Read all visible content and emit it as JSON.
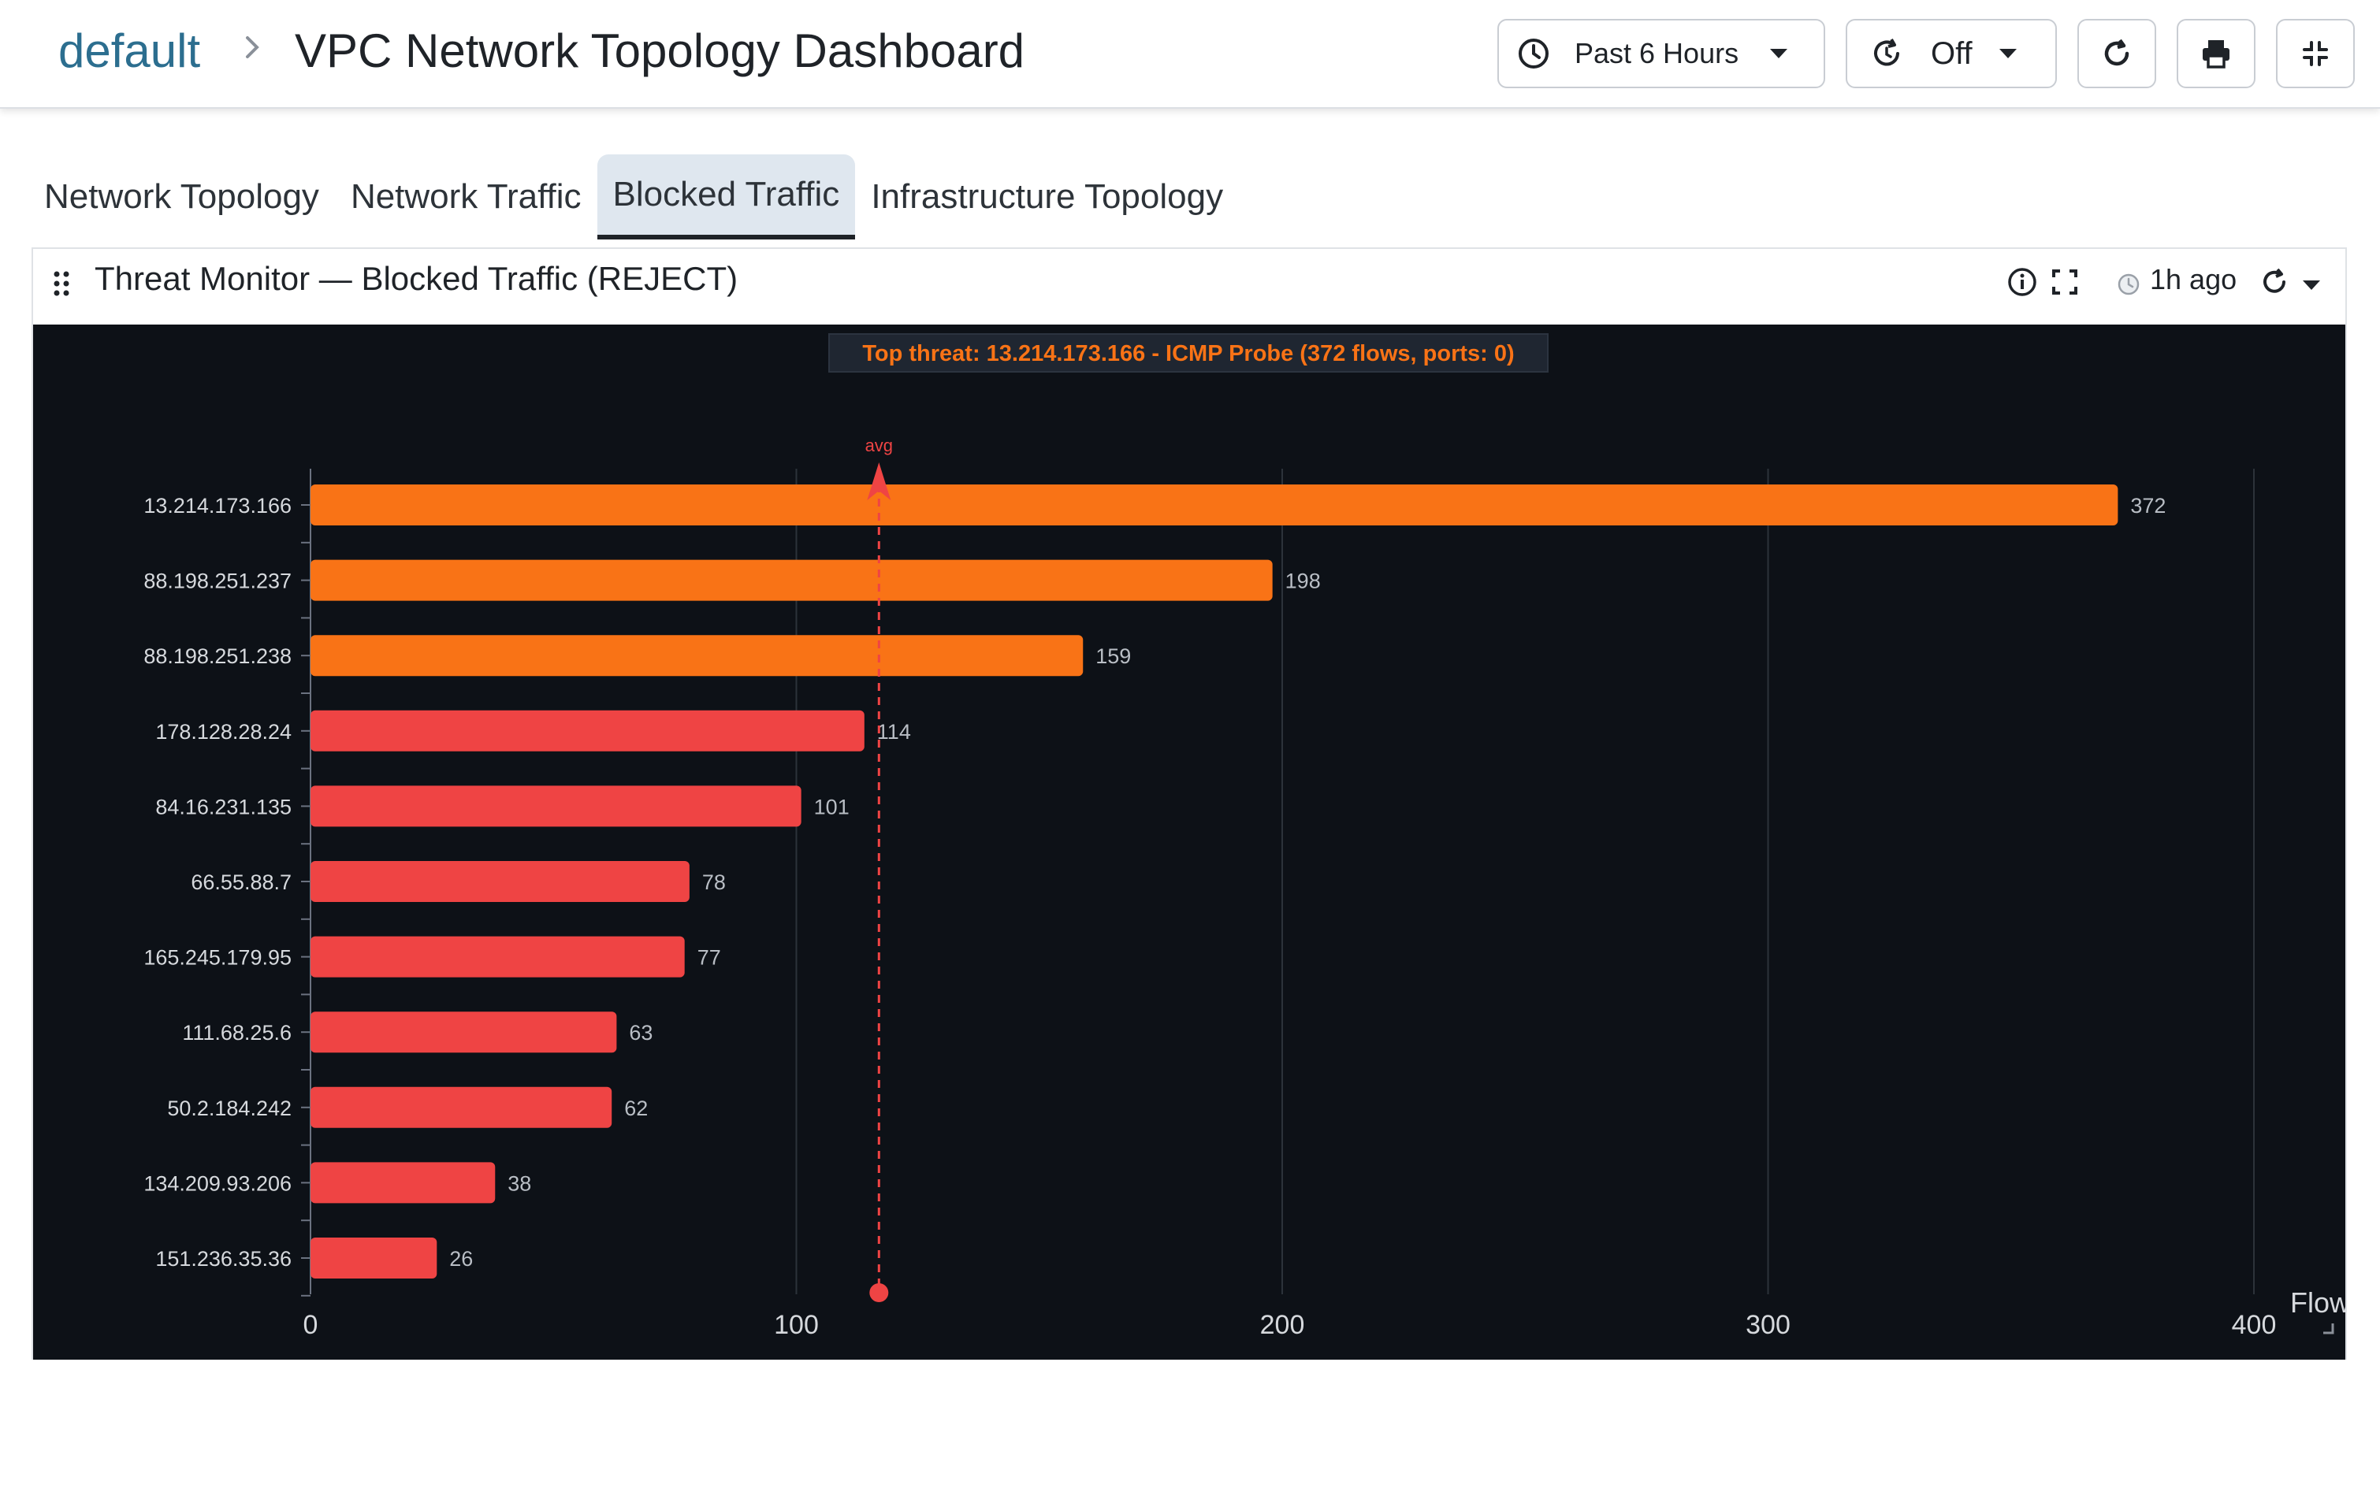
{
  "header": {
    "breadcrumb_root": "default",
    "title": "VPC Network Topology Dashboard",
    "time_range": "Past 6 Hours",
    "refresh_interval": "Off"
  },
  "tabs": [
    {
      "label": "Network Topology",
      "active": false
    },
    {
      "label": "Network Traffic",
      "active": false
    },
    {
      "label": "Blocked Traffic",
      "active": true
    },
    {
      "label": "Infrastructure Topology",
      "active": false
    }
  ],
  "panel": {
    "title": "Threat Monitor — Blocked Traffic (REJECT)",
    "last_refresh": "1h ago"
  },
  "chart_data": {
    "type": "bar",
    "orientation": "horizontal",
    "annotation": "Top threat: 13.214.173.166 - ICMP Probe (372 flows, ports: 0)",
    "categories": [
      "13.214.173.166",
      "88.198.251.237",
      "88.198.251.238",
      "178.128.28.24",
      "84.16.231.135",
      "66.55.88.7",
      "165.245.179.95",
      "111.68.25.6",
      "50.2.184.242",
      "134.209.93.206",
      "151.236.35.36"
    ],
    "values": [
      372,
      198,
      159,
      114,
      101,
      78,
      77,
      63,
      62,
      38,
      26
    ],
    "bar_colors": [
      "#f97316",
      "#f97316",
      "#f97316",
      "#ef4444",
      "#ef4444",
      "#ef4444",
      "#ef4444",
      "#ef4444",
      "#ef4444",
      "#ef4444",
      "#ef4444"
    ],
    "xlim": [
      0,
      400
    ],
    "xticks": [
      0,
      100,
      200,
      300,
      400
    ],
    "xlabel": "Flow",
    "reference_line": {
      "label": "avg",
      "value": 117,
      "color": "#ef4444"
    },
    "grid": true,
    "background": "#0d1117",
    "annotation_color": "#f97316"
  }
}
